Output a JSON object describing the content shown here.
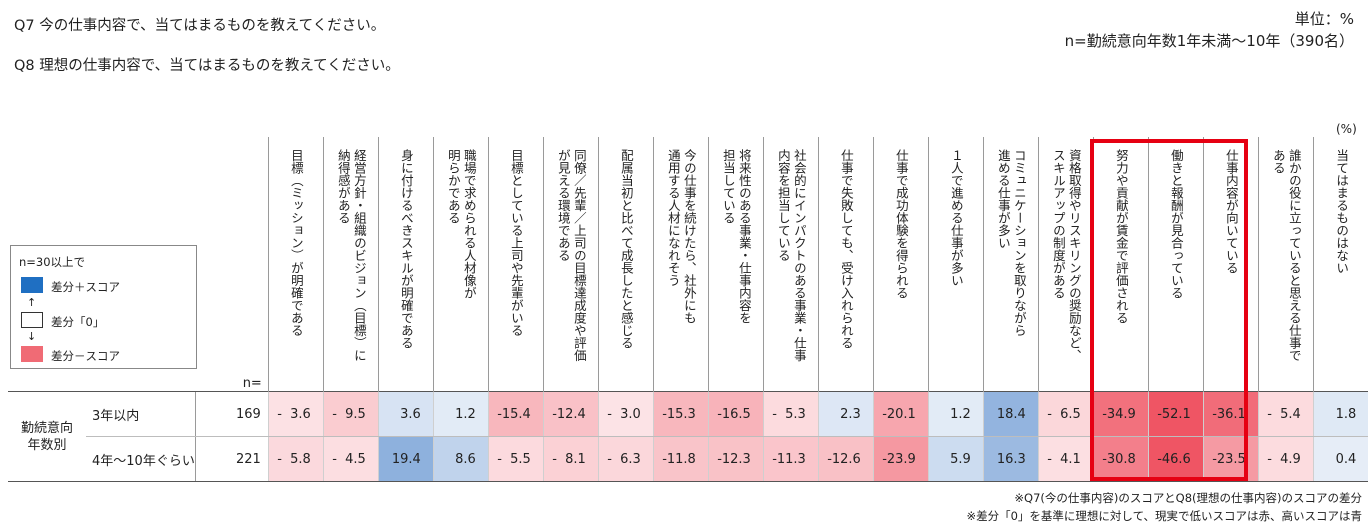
{
  "questions": {
    "q7": "Q7  今の仕事内容で、当てはまるものを教えてください。",
    "q8": "Q8  理想の仕事内容で、当てはまるものを教えてください。"
  },
  "unit": "単位：%",
  "sample": "n=勤続意向年数1年未満～10年（390名）",
  "pct_label": "(%)",
  "n_label": "n=",
  "legend": {
    "title": "n=30以上で",
    "plus": "差分＋スコア",
    "zero": "差分「0」",
    "minus": "差分－スコア",
    "up_arrow": "↑",
    "down_arrow": "↓",
    "plus_color": "#1f6fc2",
    "minus_color": "#f06b75"
  },
  "chart_data": {
    "type": "table",
    "columns": [
      "目標（ミッション）が明確である",
      "経営方針・組織のビジョン（目標）に納得感がある",
      "身に付けるべきスキルが明確である",
      "職場で求められる人材像が明らかである",
      "目標としている上司や先輩がいる",
      "同僚／先輩／上司の目標達成度や評価が見える環境である",
      "配属当初と比べて成長したと感じる",
      "今の仕事を続けたら、社外にも通用する人材になれそう",
      "将来性のある事業・仕事内容を担当している",
      "社会的にインパクトのある事業・仕事内容を担当している",
      "仕事で失敗しても、受け入れられる",
      "仕事で成功体験を得られる",
      "１人で進める仕事が多い",
      "コミュニケーションを取りながら進める仕事が多い",
      "資格取得やリスキリングの奨励など、スキルアップの制度がある",
      "努力や貢献が賃金で評価される",
      "働きと報酬が見合っている",
      "仕事内容が向いている",
      "誰かの役に立っていると思える仕事である",
      "当てはまるものはない"
    ],
    "header_text": [
      "目標（ミッション）が明確である",
      "経営方針・組織のビジョン（目標）に\n納得感がある",
      "身に付けるべきスキルが明確である",
      "職場で求められる人材像が\n明らかである",
      "目標としている上司や先輩がいる",
      "同僚／先輩／上司の目標達成度や評価\nが見える環境である",
      "配属当初と比べて成長したと感じる",
      "今の仕事を続けたら、社外にも\n通用する人材になれそう",
      "将来性のある事業・仕事内容を\n担当している",
      "社会的にインパクトのある事業・仕事\n内容を担当している",
      "仕事で失敗しても、受け入れられる",
      "仕事で成功体験を得られる",
      "１人で進める仕事が多い",
      "コミュニケーションを取りながら\n進める仕事が多い",
      "資格取得やリスキリングの奨励など、\nスキルアップの制度がある",
      "努力や貢献が賃金で評価される",
      "働きと報酬が見合っている",
      "仕事内容が向いている",
      "誰かの役に立っていると思える仕事で\nある",
      "当てはまるものはない"
    ],
    "group_label": "勤続意向\n年数別",
    "rows": [
      {
        "label": "3年以内",
        "n": 169,
        "values": [
          -3.6,
          -9.5,
          3.6,
          1.2,
          -15.4,
          -12.4,
          -3.0,
          -15.3,
          -16.5,
          -5.3,
          2.3,
          -20.1,
          1.2,
          18.4,
          -6.5,
          -34.9,
          -52.1,
          -36.1,
          -5.4,
          1.8
        ],
        "display": [
          "-  3.6",
          "-  9.5",
          "3.6",
          "1.2",
          "-15.4",
          "-12.4",
          "-  3.0",
          "-15.3",
          "-16.5",
          "-  5.3",
          "2.3",
          "-20.1",
          "1.2",
          "18.4",
          "-  6.5",
          "-34.9",
          "-52.1",
          "-36.1",
          "-  5.4",
          "1.8"
        ]
      },
      {
        "label": "4年～10年ぐらい",
        "n": 221,
        "values": [
          -5.8,
          -4.5,
          19.4,
          8.6,
          -5.5,
          -8.1,
          -6.3,
          -11.8,
          -12.3,
          -11.3,
          -12.6,
          -23.9,
          5.9,
          16.3,
          -4.1,
          -30.8,
          -46.6,
          -23.5,
          -4.9,
          0.4
        ],
        "display": [
          "-  5.8",
          "-  4.5",
          "19.4",
          "8.6",
          "-  5.5",
          "-  8.1",
          "-  6.3",
          "-11.8",
          "-12.3",
          "-11.3",
          "-12.6",
          "-23.9",
          "5.9",
          "16.3",
          "-  4.1",
          "-30.8",
          "-46.6",
          "-23.5",
          "-  4.9",
          "0.4"
        ]
      }
    ],
    "highlight_columns": [
      "努力や貢献が賃金で評価される",
      "働きと報酬が見合っている",
      "仕事内容が向いている"
    ],
    "highlight_color": "#e60012"
  },
  "footnotes": [
    "※Q7(今の仕事内容)のスコアとQ8(理想の仕事内容)のスコアの差分",
    "※差分「0」を基準に理想に対して、現実で低いスコアは赤、高いスコアは青"
  ]
}
